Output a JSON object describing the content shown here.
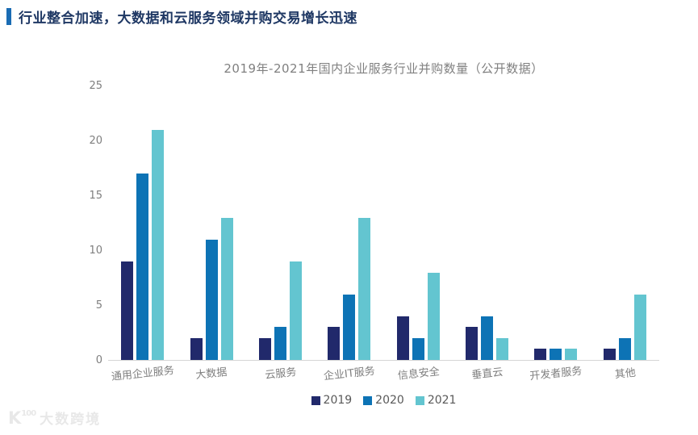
{
  "header": {
    "title": "行业整合加速，大数据和云服务领域并购交易增长迅速"
  },
  "watermark": {
    "icon_letter": "K",
    "icon_number": "100",
    "text": "大数跨境"
  },
  "colors": {
    "accent_bar": "#1a6cb4",
    "header_title": "#1f3864",
    "chart_title_text": "#808080",
    "axis_text": "#7f7f7f",
    "legend_text": "#595959",
    "axis_line": "#d6d6d6",
    "series_2019": "#21296b",
    "series_2020": "#0d73b5",
    "series_2021": "#63c5d0"
  },
  "chart_data": {
    "type": "bar",
    "title": "2019年-2021年国内企业服务行业并购数量（公开数据）",
    "categories": [
      "通用企业服务",
      "大数据",
      "云服务",
      "企业IT服务",
      "信息安全",
      "垂直云",
      "开发者服务",
      "其他"
    ],
    "series": [
      {
        "name": "2019",
        "color": "#21296b",
        "values": [
          9,
          2,
          2,
          3,
          4,
          3,
          1,
          1
        ]
      },
      {
        "name": "2020",
        "color": "#0d73b5",
        "values": [
          17,
          11,
          3,
          6,
          2,
          4,
          1,
          2
        ]
      },
      {
        "name": "2021",
        "color": "#63c5d0",
        "values": [
          21,
          13,
          9,
          13,
          8,
          2,
          1,
          6
        ]
      }
    ],
    "xlabel": "",
    "ylabel": "",
    "ylim": [
      0,
      25
    ],
    "y_ticks": [
      0,
      5,
      10,
      15,
      20,
      25
    ],
    "grid": false,
    "legend_position": "bottom"
  }
}
